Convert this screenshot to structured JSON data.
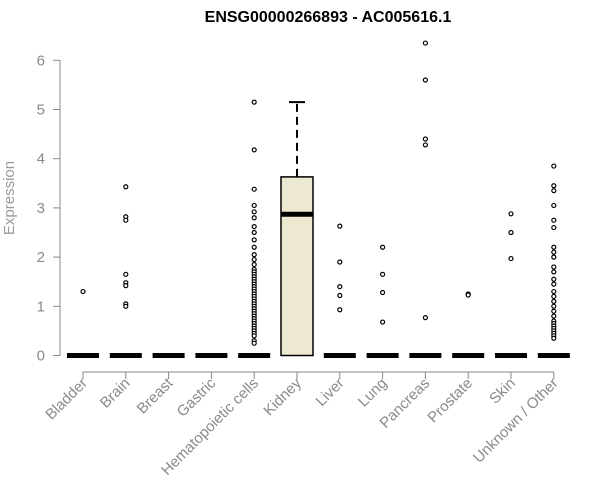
{
  "chart_data": {
    "type": "box",
    "title": "ENSG00000266893 - AC005616.1",
    "ylabel": "Expression",
    "xlabel": "",
    "ylim": [
      0,
      6.6
    ],
    "yticks": [
      0,
      1,
      2,
      3,
      4,
      5,
      6
    ],
    "categories": [
      "Bladder",
      "Brain",
      "Breast",
      "Gastric",
      "Hematopoietic cells",
      "Kidney",
      "Liver",
      "Lung",
      "Pancreas",
      "Prostate",
      "Skin",
      "Unknown / Other"
    ],
    "box_fill": "#ede8d0",
    "grid": false,
    "legend": "none",
    "series": [
      {
        "category": "Bladder",
        "q1": 0,
        "median": 0,
        "q3": 0,
        "whisker_low": 0,
        "whisker_high": 0,
        "outliers": [
          1.3
        ]
      },
      {
        "category": "Brain",
        "q1": 0,
        "median": 0,
        "q3": 0,
        "whisker_low": 0,
        "whisker_high": 0,
        "outliers": [
          3.43,
          2.82,
          2.75,
          1.65,
          1.48,
          1.42,
          1.05,
          1.0
        ]
      },
      {
        "category": "Breast",
        "q1": 0,
        "median": 0,
        "q3": 0,
        "whisker_low": 0,
        "whisker_high": 0,
        "outliers": []
      },
      {
        "category": "Gastric",
        "q1": 0,
        "median": 0,
        "q3": 0,
        "whisker_low": 0,
        "whisker_high": 0,
        "outliers": []
      },
      {
        "category": "Hematopoietic cells",
        "q1": 0,
        "median": 0,
        "q3": 0,
        "whisker_low": 0,
        "whisker_high": 0,
        "outliers": [
          5.15,
          4.18,
          3.38,
          3.05,
          2.92,
          2.8,
          2.62,
          2.5,
          2.35,
          2.2,
          2.05,
          1.95,
          1.85,
          1.75,
          1.7,
          1.65,
          1.6,
          1.55,
          1.5,
          1.45,
          1.4,
          1.35,
          1.3,
          1.25,
          1.2,
          1.15,
          1.1,
          1.05,
          1.0,
          0.95,
          0.9,
          0.85,
          0.8,
          0.75,
          0.7,
          0.65,
          0.6,
          0.55,
          0.5,
          0.45,
          0.4,
          0.3,
          0.25
        ]
      },
      {
        "category": "Kidney",
        "q1": 0,
        "median": 2.87,
        "q3": 3.63,
        "whisker_low": 0,
        "whisker_high": 5.15,
        "outliers": []
      },
      {
        "category": "Liver",
        "q1": 0,
        "median": 0,
        "q3": 0,
        "whisker_low": 0,
        "whisker_high": 0,
        "outliers": [
          2.63,
          1.9,
          1.4,
          1.22,
          0.93
        ]
      },
      {
        "category": "Lung",
        "q1": 0,
        "median": 0,
        "q3": 0,
        "whisker_low": 0,
        "whisker_high": 0,
        "outliers": [
          2.2,
          1.65,
          1.28,
          0.68
        ]
      },
      {
        "category": "Pancreas",
        "q1": 0,
        "median": 0,
        "q3": 0,
        "whisker_low": 0,
        "whisker_high": 0,
        "outliers": [
          6.35,
          5.6,
          4.4,
          4.28,
          0.77
        ]
      },
      {
        "category": "Prostate",
        "q1": 0,
        "median": 0,
        "q3": 0,
        "whisker_low": 0,
        "whisker_high": 0,
        "outliers": [
          1.25,
          1.23
        ]
      },
      {
        "category": "Skin",
        "q1": 0,
        "median": 0,
        "q3": 0,
        "whisker_low": 0,
        "whisker_high": 0,
        "outliers": [
          2.88,
          2.5,
          1.97
        ]
      },
      {
        "category": "Unknown / Other",
        "q1": 0,
        "median": 0,
        "q3": 0,
        "whisker_low": 0,
        "whisker_high": 0,
        "outliers": [
          3.85,
          3.45,
          3.35,
          3.05,
          2.75,
          2.6,
          2.2,
          2.1,
          2.0,
          1.8,
          1.7,
          1.55,
          1.45,
          1.3,
          1.2,
          1.1,
          1.0,
          0.9,
          0.8,
          0.7,
          0.65,
          0.6,
          0.55,
          0.5,
          0.45,
          0.4,
          0.35
        ]
      }
    ]
  }
}
